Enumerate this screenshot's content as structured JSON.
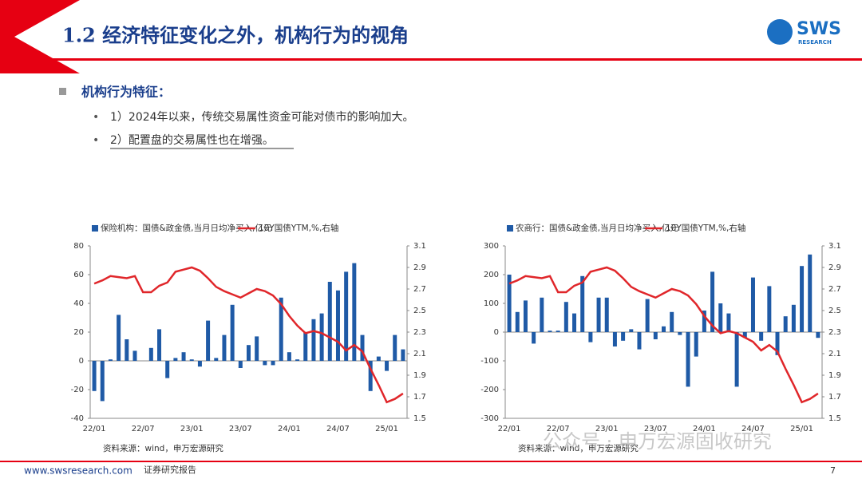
{
  "header": {
    "title": "1.2 经济特征变化之外，机构行为的视角",
    "logo": "SWS",
    "logo_sub": "RESEARCH"
  },
  "bullets": {
    "heading": "机构行为特征：",
    "items": [
      "1）2024年以来，传统交易属性资金可能对债市的影响加大。",
      "2）配置盘的交易属性也在增强。"
    ]
  },
  "footer": {
    "url": "www.swsresearch.com",
    "label": "证券研究报告",
    "page": "7"
  },
  "watermark": "公众号 · 申万宏源固收研究",
  "chart_data": [
    {
      "type": "bar_line",
      "note": "资料来源：wind，申万宏源研究",
      "categories": [
        "22/01",
        null,
        null,
        null,
        null,
        null,
        "22/07",
        null,
        null,
        null,
        null,
        null,
        "23/01",
        null,
        null,
        null,
        null,
        null,
        "23/07",
        null,
        null,
        null,
        null,
        null,
        "24/01",
        null,
        null,
        null,
        null,
        null,
        "24/07",
        null,
        null,
        null,
        null,
        null,
        "25/01",
        null,
        null
      ],
      "series": [
        {
          "name": "保险机构：国债&政金债,当月日均净买入,亿元",
          "color": "#1f5aa6",
          "axis": "y",
          "values": [
            -21,
            -28,
            1,
            32,
            15,
            7,
            0,
            9,
            22,
            -12,
            2,
            6,
            1,
            -4,
            28,
            2,
            18,
            39,
            -5,
            11,
            17,
            -3,
            -3,
            44,
            6,
            1,
            20,
            29,
            33,
            55,
            49,
            62,
            68,
            18,
            -21,
            3,
            -7,
            18,
            8
          ]
        },
        {
          "name": "10Y国债YTM,%,右轴",
          "color": "#e0262a",
          "axis": "y2",
          "values": [
            2.75,
            2.78,
            2.82,
            2.81,
            2.8,
            2.82,
            2.67,
            2.67,
            2.73,
            2.76,
            2.86,
            2.88,
            2.9,
            2.87,
            2.8,
            2.72,
            2.68,
            2.65,
            2.62,
            2.66,
            2.7,
            2.68,
            2.64,
            2.56,
            2.45,
            2.36,
            2.29,
            2.31,
            2.29,
            2.25,
            2.21,
            2.13,
            2.18,
            2.12,
            1.96,
            1.81,
            1.65,
            1.68,
            1.73
          ]
        }
      ],
      "ylim": [
        -40,
        80
      ],
      "yticks": [
        -40,
        -20,
        0,
        20,
        40,
        60,
        80
      ],
      "y2lim": [
        1.5,
        3.1
      ],
      "y2ticks": [
        1.5,
        1.7,
        1.9,
        2.1,
        2.3,
        2.5,
        2.7,
        2.9,
        3.1
      ]
    },
    {
      "type": "bar_line",
      "note": "资料来源：wind，申万宏源研究",
      "categories": [
        "22/01",
        null,
        null,
        null,
        null,
        null,
        "22/07",
        null,
        null,
        null,
        null,
        null,
        "23/01",
        null,
        null,
        null,
        null,
        null,
        "23/07",
        null,
        null,
        null,
        null,
        null,
        "24/01",
        null,
        null,
        null,
        null,
        null,
        "24/07",
        null,
        null,
        null,
        null,
        null,
        "25/01",
        null,
        null
      ],
      "series": [
        {
          "name": "农商行：国债&政金债,当月日均净买入,亿元",
          "color": "#1f5aa6",
          "axis": "y",
          "values": [
            200,
            70,
            110,
            -40,
            120,
            5,
            5,
            105,
            65,
            195,
            -35,
            120,
            120,
            -50,
            -30,
            10,
            -60,
            115,
            -25,
            20,
            70,
            -10,
            -190,
            -85,
            75,
            210,
            100,
            65,
            -190,
            -20,
            190,
            -30,
            160,
            -80,
            55,
            95,
            230,
            270,
            -20
          ]
        },
        {
          "name": "10Y国债YTM,%,右轴",
          "color": "#e0262a",
          "axis": "y2",
          "values": [
            2.75,
            2.78,
            2.82,
            2.81,
            2.8,
            2.82,
            2.67,
            2.67,
            2.73,
            2.76,
            2.86,
            2.88,
            2.9,
            2.87,
            2.8,
            2.72,
            2.68,
            2.65,
            2.62,
            2.66,
            2.7,
            2.68,
            2.64,
            2.56,
            2.45,
            2.36,
            2.29,
            2.31,
            2.29,
            2.25,
            2.21,
            2.13,
            2.18,
            2.12,
            1.96,
            1.81,
            1.65,
            1.68,
            1.73
          ]
        }
      ],
      "ylim": [
        -300,
        300
      ],
      "yticks": [
        -300,
        -200,
        -100,
        0,
        100,
        200,
        300
      ],
      "y2lim": [
        1.5,
        3.1
      ],
      "y2ticks": [
        1.5,
        1.7,
        1.9,
        2.1,
        2.3,
        2.5,
        2.7,
        2.9,
        3.1
      ]
    }
  ]
}
